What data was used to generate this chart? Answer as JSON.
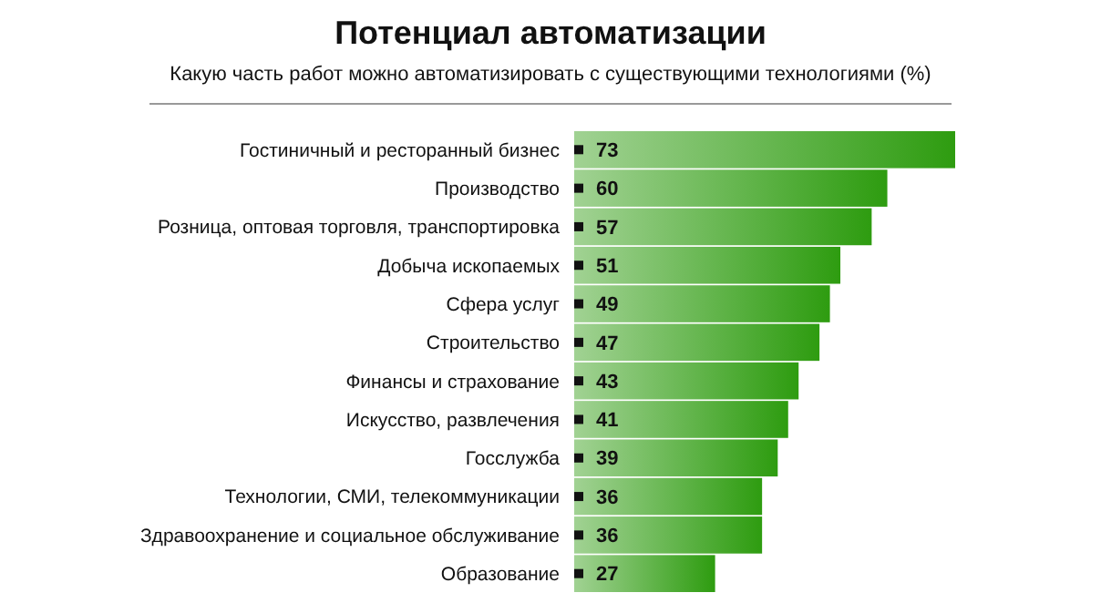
{
  "chart_data": {
    "type": "bar",
    "orientation": "horizontal",
    "title": "Потенциал автоматизации",
    "subtitle": "Какую часть работ можно автоматизировать с существующими технологиями (%)",
    "categories": [
      "Гостиничный и ресторанный бизнес",
      "Производство",
      "Розница, оптовая торговля, транспортировка",
      "Добыча ископаемых",
      "Сфера услуг",
      "Строительство",
      "Финансы и страхование",
      "Искусство, развлечения",
      "Госслужба",
      "Технологии, СМИ, телекоммуникации",
      "Здравоохранение и социальное обслуживание",
      "Образование"
    ],
    "values": [
      73,
      60,
      57,
      51,
      49,
      47,
      43,
      41,
      39,
      36,
      36,
      27
    ],
    "color": "#2e9c10",
    "data_labels": true
  }
}
